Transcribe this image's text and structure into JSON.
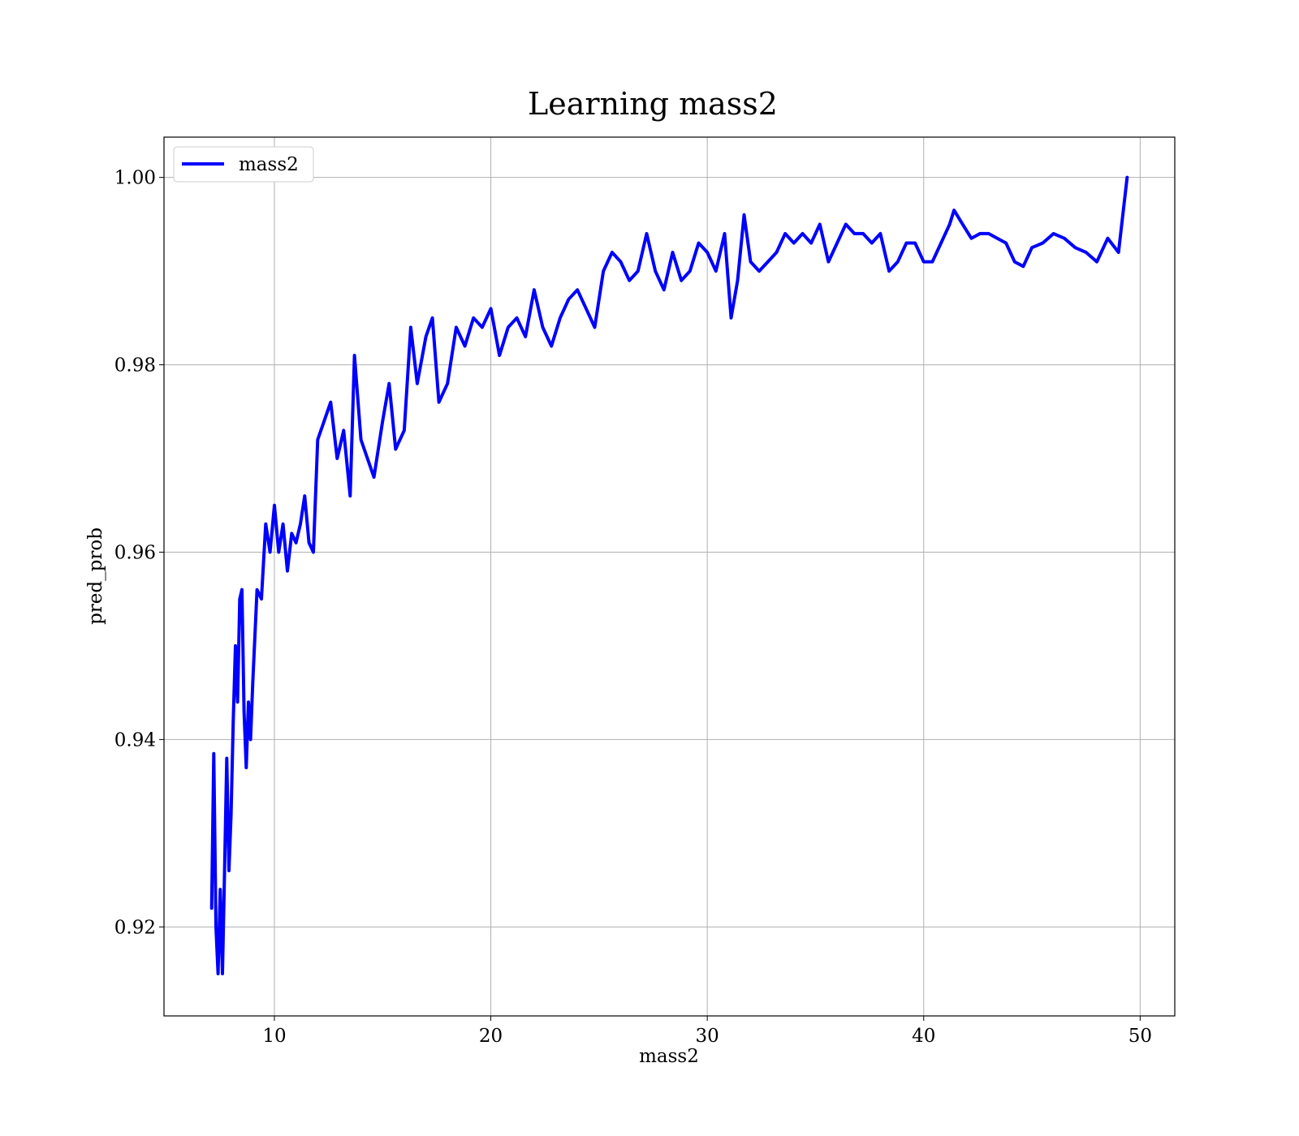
{
  "chart_data": {
    "type": "line",
    "title": "Learning mass2",
    "xlabel": "mass2",
    "ylabel": "pred_prob",
    "xlim": [
      4.9,
      51.6
    ],
    "ylim": [
      0.9105,
      1.0043
    ],
    "xticks": [
      10,
      20,
      30,
      40,
      50
    ],
    "xtick_labels": [
      "10",
      "20",
      "30",
      "40",
      "50"
    ],
    "yticks": [
      0.92,
      0.94,
      0.96,
      0.98,
      1.0
    ],
    "ytick_labels": [
      "0.92",
      "0.94",
      "0.96",
      "0.98",
      "1.00"
    ],
    "grid": true,
    "legend": {
      "location": "upper left",
      "entries": [
        "mass2"
      ]
    },
    "series": [
      {
        "name": "mass2",
        "color": "#0000ff",
        "x": [
          7.1,
          7.2,
          7.3,
          7.4,
          7.5,
          7.6,
          7.7,
          7.8,
          7.9,
          8.0,
          8.1,
          8.2,
          8.3,
          8.4,
          8.5,
          8.6,
          8.7,
          8.8,
          8.9,
          9.0,
          9.2,
          9.4,
          9.6,
          9.8,
          10.0,
          10.2,
          10.4,
          10.6,
          10.8,
          11.0,
          11.2,
          11.4,
          11.6,
          11.8,
          12.0,
          12.3,
          12.6,
          12.9,
          13.2,
          13.5,
          13.7,
          14.0,
          14.3,
          14.6,
          15.0,
          15.3,
          15.6,
          16.0,
          16.3,
          16.6,
          17.0,
          17.3,
          17.6,
          18.0,
          18.4,
          18.8,
          19.2,
          19.6,
          20.0,
          20.4,
          20.8,
          21.2,
          21.6,
          22.0,
          22.4,
          22.8,
          23.2,
          23.6,
          24.0,
          24.4,
          24.8,
          25.2,
          25.6,
          26.0,
          26.4,
          26.8,
          27.2,
          27.6,
          28.0,
          28.4,
          28.8,
          29.2,
          29.6,
          30.0,
          30.4,
          30.8,
          31.1,
          31.4,
          31.7,
          32.0,
          32.4,
          32.8,
          33.2,
          33.6,
          34.0,
          34.4,
          34.8,
          35.2,
          35.6,
          36.0,
          36.4,
          36.8,
          37.2,
          37.6,
          38.0,
          38.4,
          38.8,
          39.2,
          39.6,
          40.0,
          40.4,
          40.8,
          41.2,
          41.4,
          41.8,
          42.2,
          42.6,
          43.0,
          43.4,
          43.8,
          44.2,
          44.6,
          45.0,
          45.5,
          46.0,
          46.5,
          47.0,
          47.5,
          48.0,
          48.5,
          49.0,
          49.4
        ],
        "y": [
          0.922,
          0.9385,
          0.92,
          0.915,
          0.924,
          0.915,
          0.926,
          0.938,
          0.926,
          0.932,
          0.942,
          0.95,
          0.944,
          0.955,
          0.956,
          0.943,
          0.937,
          0.944,
          0.94,
          0.946,
          0.956,
          0.955,
          0.963,
          0.96,
          0.965,
          0.96,
          0.963,
          0.958,
          0.962,
          0.961,
          0.963,
          0.966,
          0.961,
          0.96,
          0.972,
          0.974,
          0.976,
          0.97,
          0.973,
          0.966,
          0.981,
          0.972,
          0.97,
          0.968,
          0.974,
          0.978,
          0.971,
          0.973,
          0.984,
          0.978,
          0.983,
          0.985,
          0.976,
          0.978,
          0.984,
          0.982,
          0.985,
          0.984,
          0.986,
          0.981,
          0.984,
          0.985,
          0.983,
          0.988,
          0.984,
          0.982,
          0.985,
          0.987,
          0.988,
          0.986,
          0.984,
          0.99,
          0.992,
          0.991,
          0.989,
          0.99,
          0.994,
          0.99,
          0.988,
          0.992,
          0.989,
          0.99,
          0.993,
          0.992,
          0.99,
          0.994,
          0.985,
          0.989,
          0.996,
          0.991,
          0.99,
          0.991,
          0.992,
          0.994,
          0.993,
          0.994,
          0.993,
          0.995,
          0.991,
          0.993,
          0.995,
          0.994,
          0.994,
          0.993,
          0.994,
          0.99,
          0.991,
          0.993,
          0.993,
          0.991,
          0.991,
          0.993,
          0.995,
          0.9965,
          0.995,
          0.9935,
          0.994,
          0.994,
          0.9935,
          0.993,
          0.991,
          0.9905,
          0.9925,
          0.993,
          0.994,
          0.9935,
          0.9925,
          0.992,
          0.991,
          0.9935,
          0.992,
          1.0
        ]
      }
    ]
  }
}
